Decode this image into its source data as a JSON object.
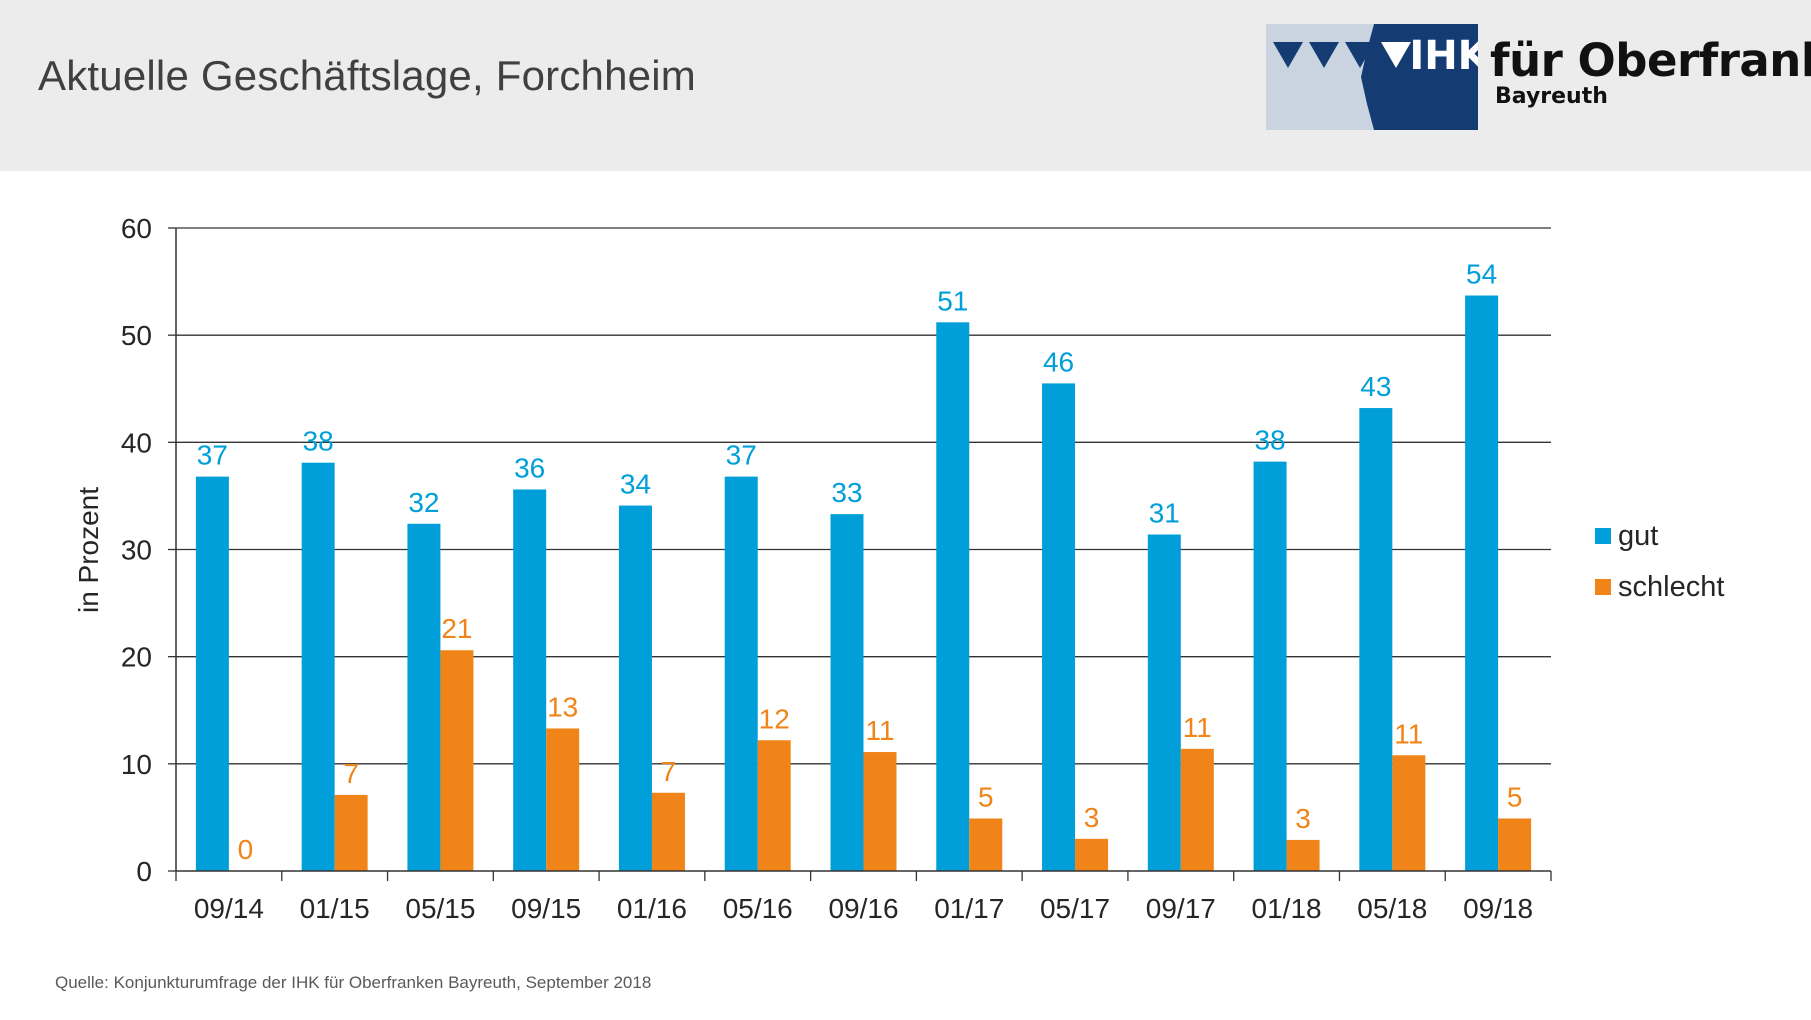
{
  "slide": {
    "title": "Aktuelle Geschäftslage, Forchheim",
    "source": "Quelle: Konjunkturumfrage der IHK für Oberfranken Bayreuth, September 2018"
  },
  "logo": {
    "mark": "IHK",
    "name": "für Oberfranken",
    "sub": "Bayreuth",
    "colors": {
      "navy": "#143c73",
      "light": "#c9d4e0"
    }
  },
  "chart_data": {
    "type": "bar",
    "title": "",
    "xlabel": "",
    "ylabel": "in Prozent",
    "ylim": [
      0,
      60
    ],
    "yticks": [
      0,
      10,
      20,
      30,
      40,
      50,
      60
    ],
    "grid": true,
    "legend_position": "right",
    "categories": [
      "09/14",
      "01/15",
      "05/15",
      "09/15",
      "01/16",
      "05/16",
      "09/16",
      "01/17",
      "05/17",
      "09/17",
      "01/18",
      "05/18",
      "09/18"
    ],
    "series": [
      {
        "name": "gut",
        "color": "#009fd9",
        "values": [
          36.8,
          38.1,
          32.4,
          35.6,
          34.1,
          36.8,
          33.3,
          51.2,
          45.5,
          31.4,
          38.2,
          43.2,
          53.7
        ],
        "labels": [
          "37",
          "38",
          "32",
          "36",
          "34",
          "37",
          "33",
          "51",
          "46",
          "31",
          "38",
          "43",
          "54"
        ]
      },
      {
        "name": "schlecht",
        "color": "#f08419",
        "values": [
          0,
          7.1,
          20.6,
          13.3,
          7.3,
          12.2,
          11.1,
          4.9,
          3.0,
          11.4,
          2.9,
          10.8,
          4.9
        ],
        "labels": [
          "0",
          "7",
          "21",
          "13",
          "7",
          "12",
          "11",
          "5",
          "3",
          "11",
          "3",
          "11",
          "5"
        ]
      }
    ]
  }
}
